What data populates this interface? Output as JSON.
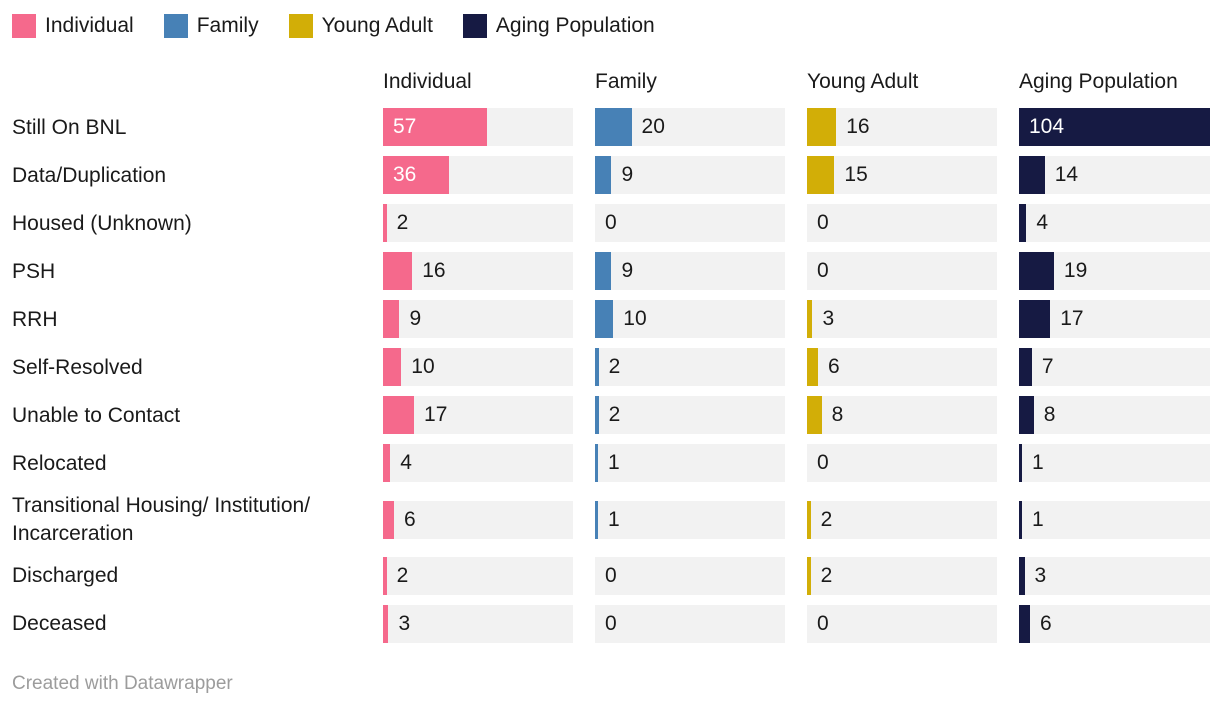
{
  "chart_data": {
    "type": "bar",
    "variant": "split-bars-grid",
    "title": "",
    "categories": [
      "Still On BNL",
      "Data/Duplication",
      "Housed (Unknown)",
      "PSH",
      "RRH",
      "Self-Resolved",
      "Unable to Contact",
      "Relocated",
      "Transitional Housing/ Institution/ Incarceration",
      "Discharged",
      "Deceased"
    ],
    "series": [
      {
        "name": "Individual",
        "color": "#f5698c",
        "values": [
          57,
          36,
          2,
          16,
          9,
          10,
          17,
          4,
          6,
          2,
          3
        ]
      },
      {
        "name": "Family",
        "color": "#4781b6",
        "values": [
          20,
          9,
          0,
          9,
          10,
          2,
          2,
          1,
          1,
          0,
          0
        ]
      },
      {
        "name": "Young Adult",
        "color": "#d2ae07",
        "values": [
          16,
          15,
          0,
          0,
          3,
          6,
          8,
          0,
          2,
          2,
          0
        ]
      },
      {
        "name": "Aging Population",
        "color": "#161a43",
        "values": [
          104,
          14,
          4,
          19,
          17,
          7,
          8,
          1,
          1,
          3,
          6
        ]
      }
    ],
    "max_value": 104,
    "value_labels_shown": true,
    "layout": {
      "legend_position": "top",
      "grid": false,
      "track_color": "#f2f2f2"
    }
  },
  "colors": {
    "track": "#f2f2f2",
    "text": "#1a1a1a",
    "value_inside": "#ffffff",
    "footer_text": "#9c9c9c"
  },
  "footer": {
    "text": "Created with Datawrapper"
  }
}
